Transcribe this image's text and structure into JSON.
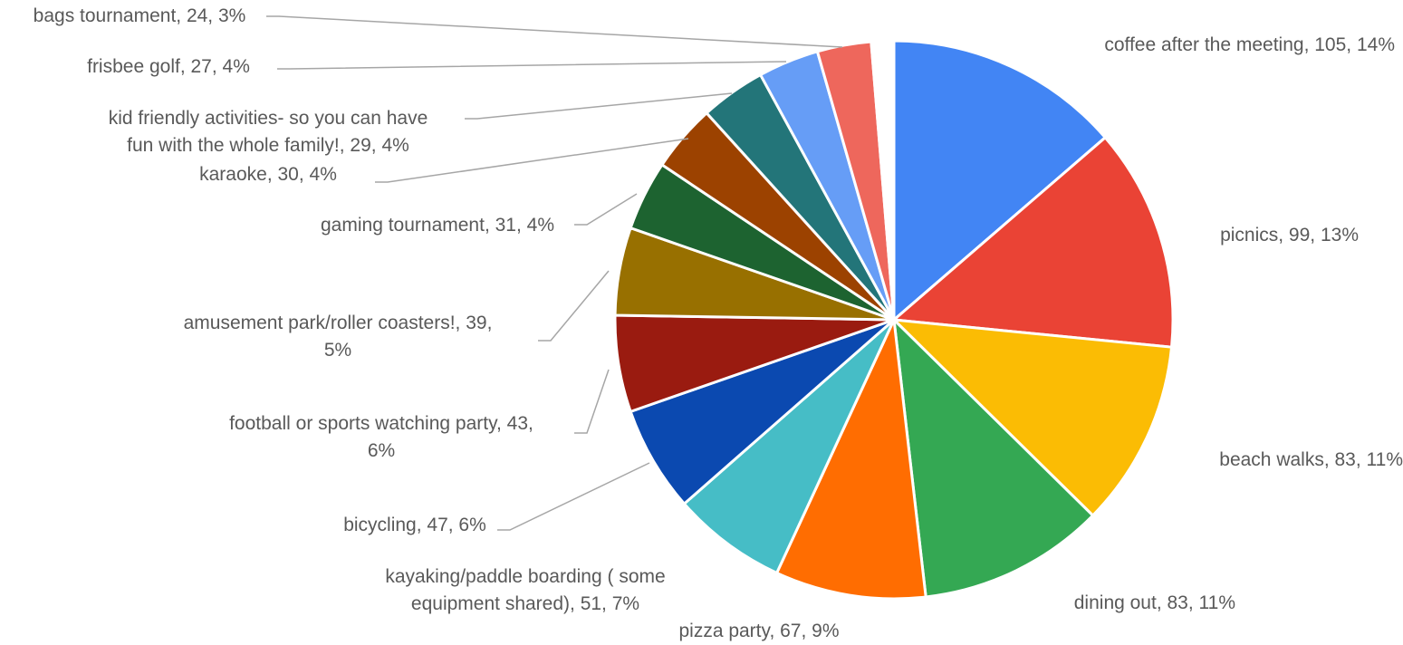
{
  "chart_data": {
    "type": "pie",
    "title": "",
    "start_angle_deg": 0,
    "direction": "clockwise",
    "legend": "none",
    "data_labels": "outside-with-leader-lines",
    "slices": [
      {
        "label": "coffee after the meeting",
        "value": 105,
        "percent": "14%",
        "color": "#4285f4",
        "text_lines": [
          "coffee after the meeting, 105, 14%"
        ]
      },
      {
        "label": "picnics",
        "value": 99,
        "percent": "13%",
        "color": "#ea4335",
        "text_lines": [
          "picnics, 99, 13%"
        ]
      },
      {
        "label": "beach walks",
        "value": 83,
        "percent": "11%",
        "color": "#fbbc04",
        "text_lines": [
          "beach walks, 83, 11%"
        ]
      },
      {
        "label": "dining out",
        "value": 83,
        "percent": "11%",
        "color": "#34a853",
        "text_lines": [
          "dining out, 83, 11%"
        ]
      },
      {
        "label": "pizza party",
        "value": 67,
        "percent": "9%",
        "color": "#ff6d01",
        "text_lines": [
          "pizza party, 67, 9%"
        ]
      },
      {
        "label": "kayaking/paddle boarding ( some equipment shared)",
        "value": 51,
        "percent": "7%",
        "color": "#46bdc6",
        "text_lines": [
          "kayaking/paddle boarding ( some",
          "equipment shared), 51, 7%"
        ]
      },
      {
        "label": "bicycling",
        "value": 47,
        "percent": "6%",
        "color": "#0b49b0",
        "text_lines": [
          "bicycling, 47, 6%"
        ]
      },
      {
        "label": "football or sports watching party",
        "value": 43,
        "percent": "6%",
        "color": "#9a1b10",
        "text_lines": [
          "football or sports watching party, 43,",
          "6%"
        ]
      },
      {
        "label": "amusement park/roller coasters!",
        "value": 39,
        "percent": "5%",
        "color": "#987000",
        "text_lines": [
          "amusement park/roller coasters!, 39,",
          "5%"
        ]
      },
      {
        "label": "gaming tournament",
        "value": 31,
        "percent": "4%",
        "color": "#1d6330",
        "text_lines": [
          "gaming tournament, 31, 4%"
        ]
      },
      {
        "label": "karaoke",
        "value": 30,
        "percent": "4%",
        "color": "#9c4200",
        "text_lines": [
          "karaoke, 30, 4%"
        ]
      },
      {
        "label": "kid friendly activities- so you can have fun with the whole family!",
        "value": 29,
        "percent": "4%",
        "color": "#237579",
        "text_lines": [
          "kid friendly activities- so you can have",
          "fun with the whole family!, 29, 4%"
        ]
      },
      {
        "label": "frisbee golf",
        "value": 27,
        "percent": "4%",
        "color": "#669df6",
        "text_lines": [
          "frisbee golf, 27, 4%"
        ]
      },
      {
        "label": "bags tournament",
        "value": 24,
        "percent": "3%",
        "color": "#ee675c",
        "text_lines": [
          "bags tournament, 24, 3%"
        ]
      },
      {
        "label": "",
        "value": 10,
        "percent": "",
        "color": "#ffffff",
        "text_lines": []
      }
    ]
  }
}
